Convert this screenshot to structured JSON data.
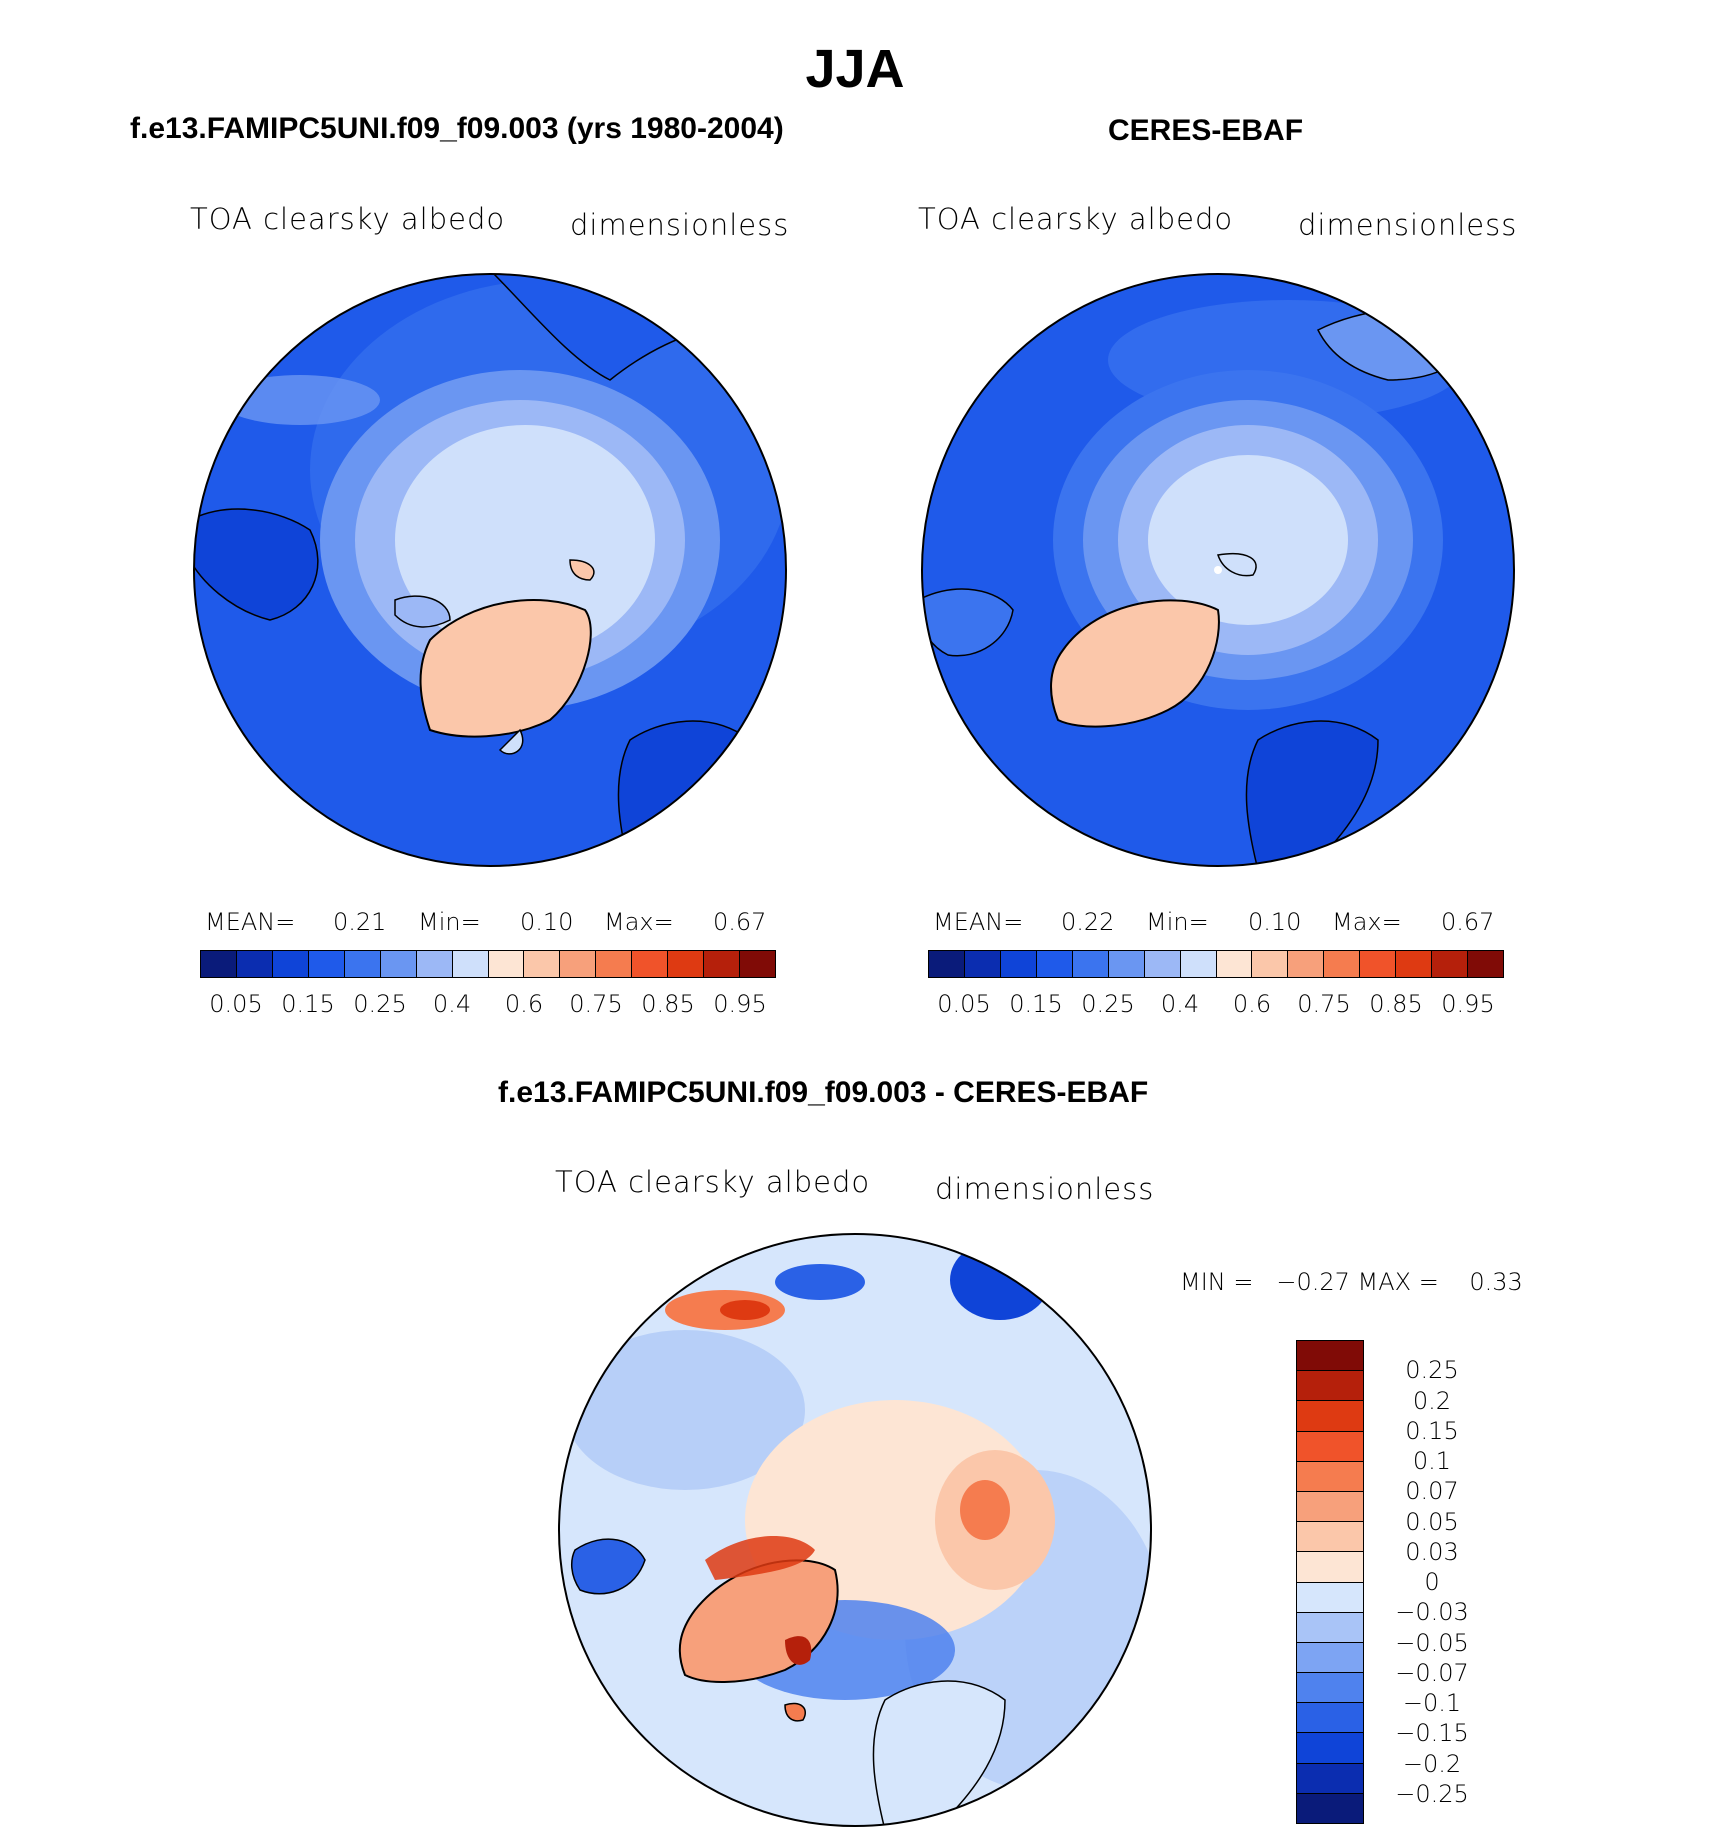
{
  "title": "JJA",
  "colors": {
    "abs_scale": [
      "#0a1b7a",
      "#0b2db0",
      "#0f44d8",
      "#1f5aea",
      "#3b74ef",
      "#6a96f2",
      "#9cb8f6",
      "#cfe0fb",
      "#fde5d4",
      "#fbc7aa",
      "#f7a07b",
      "#f57c4f",
      "#f0532a",
      "#de3a12",
      "#b5200b",
      "#800b06"
    ],
    "diff_scale": [
      "#800b06",
      "#b5200b",
      "#de3a12",
      "#f0532a",
      "#f57c4f",
      "#f7a07b",
      "#fbc7aa",
      "#fde5d4",
      "#d6e6fc",
      "#a9c4f7",
      "#7da4f3",
      "#4f82ee",
      "#2a61e6",
      "#0f44d8",
      "#0b2db0",
      "#0a1b7a"
    ]
  },
  "panels": {
    "model": {
      "title": "f.e13.FAMIPC5UNI.f09_f09.003 (yrs 1980-2004)",
      "variable": "TOA clearsky albedo",
      "units": "dimensionless",
      "mean_label": "MEAN=",
      "mean": "0.21",
      "min_label": "Min=",
      "min": "0.10",
      "max_label": "Max=",
      "max": "0.67"
    },
    "obs": {
      "title": "CERES-EBAF",
      "variable": "TOA clearsky albedo",
      "units": "dimensionless",
      "mean_label": "MEAN=",
      "mean": "0.22",
      "min_label": "Min=",
      "min": "0.10",
      "max_label": "Max=",
      "max": "0.67"
    },
    "diff": {
      "title": "f.e13.FAMIPC5UNI.f09_f09.003 - CERES-EBAF",
      "variable": "TOA clearsky albedo",
      "units": "dimensionless",
      "minmax": "MIN =   −0.27 MAX =    0.33"
    }
  },
  "chart_data": [
    {
      "type": "heatmap",
      "title": "f.e13.FAMIPC5UNI.f09_f09.003 (yrs 1980-2004)",
      "projection": "north polar stereographic",
      "variable": "TOA clearsky albedo",
      "units": "dimensionless",
      "mean": 0.21,
      "min": 0.1,
      "max": 0.67,
      "contour_levels": [
        0.05,
        0.1,
        0.15,
        0.2,
        0.25,
        0.3,
        0.4,
        0.5,
        0.6,
        0.7,
        0.75,
        0.8,
        0.85,
        0.9,
        0.95
      ],
      "colorbar_ticks": [
        "0.05",
        "0.15",
        "0.25",
        "0.4",
        "0.6",
        "0.75",
        "0.85",
        "0.95"
      ]
    },
    {
      "type": "heatmap",
      "title": "CERES-EBAF",
      "projection": "north polar stereographic",
      "variable": "TOA clearsky albedo",
      "units": "dimensionless",
      "mean": 0.22,
      "min": 0.1,
      "max": 0.67,
      "contour_levels": [
        0.05,
        0.1,
        0.15,
        0.2,
        0.25,
        0.3,
        0.4,
        0.5,
        0.6,
        0.7,
        0.75,
        0.8,
        0.85,
        0.9,
        0.95
      ],
      "colorbar_ticks": [
        "0.05",
        "0.15",
        "0.25",
        "0.4",
        "0.6",
        "0.75",
        "0.85",
        "0.95"
      ]
    },
    {
      "type": "heatmap",
      "title": "f.e13.FAMIPC5UNI.f09_f09.003 - CERES-EBAF",
      "projection": "north polar stereographic",
      "variable": "TOA clearsky albedo",
      "units": "dimensionless",
      "min": -0.27,
      "max": 0.33,
      "colorbar_ticks": [
        "0.25",
        "0.2",
        "0.15",
        "0.1",
        "0.07",
        "0.05",
        "0.03",
        "0",
        "−0.03",
        "−0.05",
        "−0.07",
        "−0.1",
        "−0.15",
        "−0.2",
        "−0.25"
      ]
    }
  ]
}
